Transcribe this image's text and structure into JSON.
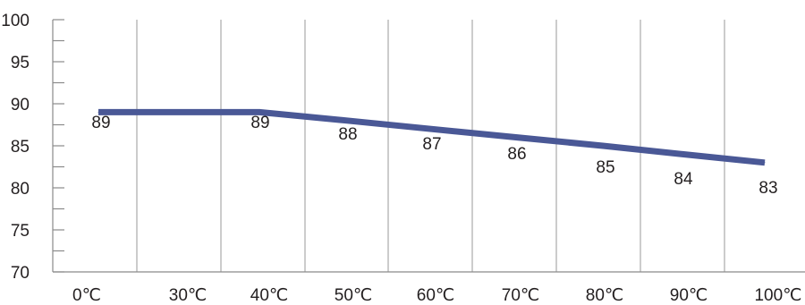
{
  "chart_data": {
    "type": "line",
    "title": "",
    "xlabel": "",
    "ylabel": "",
    "categories": [
      "0℃",
      "30℃",
      "40℃",
      "50℃",
      "60℃",
      "70℃",
      "80℃",
      "90℃",
      "100℃"
    ],
    "points": [
      {
        "x": "0℃",
        "y": 89,
        "label": "89"
      },
      {
        "x": "40℃",
        "y": 89,
        "label": "89"
      },
      {
        "x": "50℃",
        "y": 88,
        "label": "88"
      },
      {
        "x": "60℃",
        "y": 87,
        "label": "87"
      },
      {
        "x": "70℃",
        "y": 86,
        "label": "86"
      },
      {
        "x": "80℃",
        "y": 85,
        "label": "85"
      },
      {
        "x": "90℃",
        "y": 84,
        "label": "84"
      },
      {
        "x": "100℃",
        "y": 83,
        "label": "83"
      }
    ],
    "ylim": [
      70,
      100
    ],
    "y_ticks": [
      "100",
      "95",
      "90",
      "85",
      "80",
      "75",
      "70"
    ],
    "grid": "vertical",
    "colors": {
      "line": "#4a5896",
      "grid": "#9a9a9a",
      "axis": "#8a8a8a",
      "text": "#231f20"
    }
  }
}
